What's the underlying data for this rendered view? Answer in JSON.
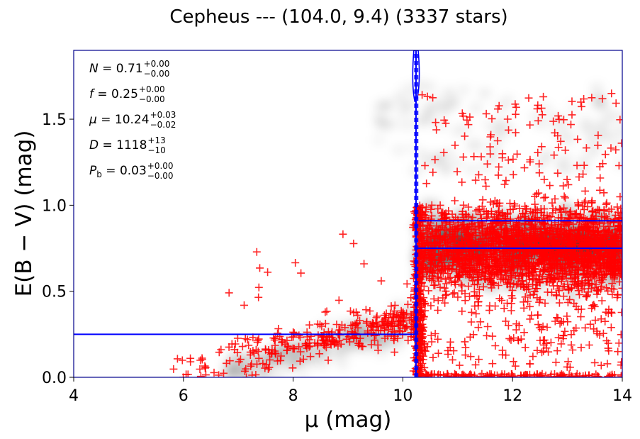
{
  "chart_data": {
    "type": "scatter",
    "title": "Cepheus --- (104.0, 9.4) (3337 stars)",
    "xlabel": "μ (mag)",
    "ylabel": "E(B − V) (mag)",
    "xlim": [
      4,
      14
    ],
    "ylim": [
      0,
      1.9
    ],
    "xticks": [
      4,
      6,
      8,
      10,
      12,
      14
    ],
    "yticks": [
      0.0,
      0.5,
      1.0,
      1.5
    ],
    "xtick_labels": [
      "4",
      "6",
      "8",
      "10",
      "12",
      "14"
    ],
    "ytick_labels": [
      "0.0",
      "0.5",
      "1.0",
      "1.5"
    ],
    "grid": false,
    "legend": "none",
    "annotations": [
      {
        "lhs": "N = 0.71",
        "sup": "+0.00",
        "sub": "−0.00"
      },
      {
        "lhs": "f = 0.25",
        "sup": "+0.00",
        "sub": "−0.00"
      },
      {
        "lhs": "μ = 10.24",
        "sup": "+0.03",
        "sub": "−0.02"
      },
      {
        "lhs": "D = 1118",
        "sup": "+13",
        "sub": "−10"
      },
      {
        "lhs": "P_b = 0.03",
        "sup": "+0.00",
        "sub": "−0.00"
      }
    ],
    "fit": {
      "distance_modulus": 10.24,
      "distance_modulus_lower": 10.22,
      "distance_modulus_upper": 10.27,
      "foreground_extinction": 0.25,
      "background_extinction": 0.75,
      "background_extinction_upper": 0.91
    },
    "series": [
      {
        "marker": "+",
        "color": "#ff0000",
        "count": 3337
      }
    ],
    "density_colormap": "Greys",
    "colors": {
      "stars": "#ff0000",
      "fit_lines": "#0000ff",
      "axes_frame": "#00008b"
    }
  }
}
